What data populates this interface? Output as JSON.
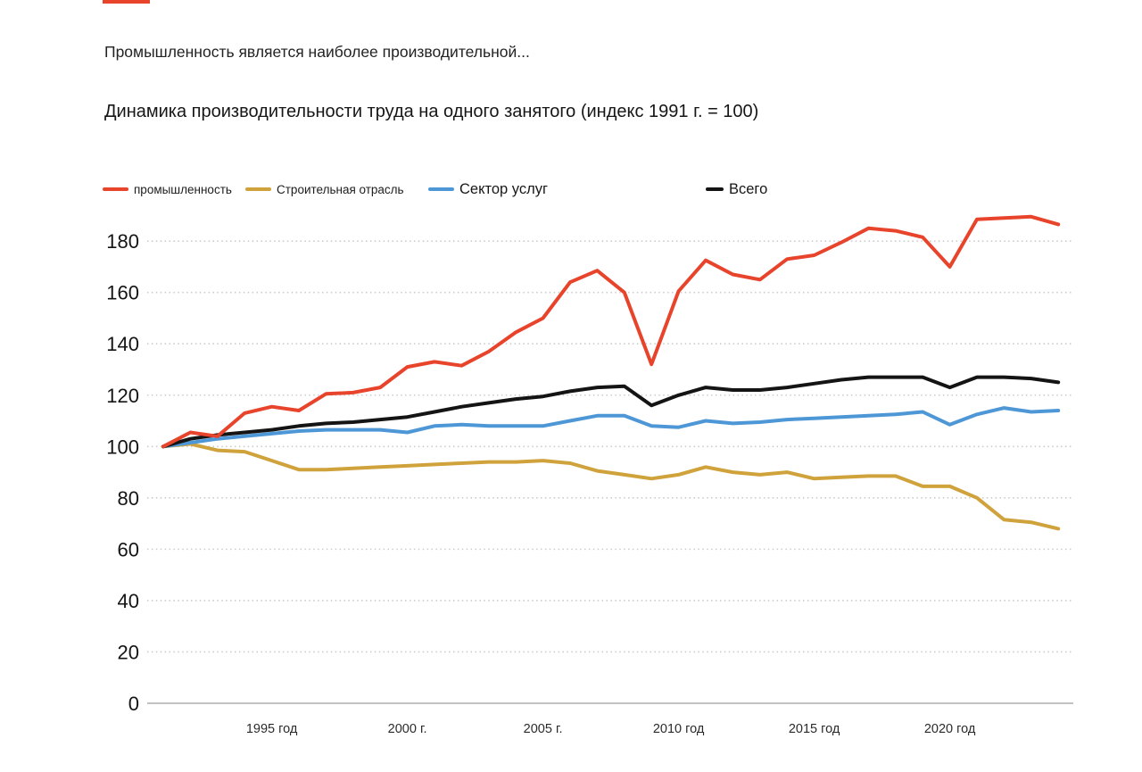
{
  "accent_color": "#E8432B",
  "kicker": "Промышленность является наиболее производительной...",
  "title": "Динамика производительности труда на одного занятого (индекс 1991 г. = 100)",
  "legend": {
    "items": [
      {
        "key": "industry",
        "label": "промышленность",
        "color": "#E8432B",
        "size": "small"
      },
      {
        "key": "construction",
        "label": "Строительная отрасль",
        "color": "#D0A23C",
        "size": "small"
      },
      {
        "key": "services",
        "label": "Сектор услуг",
        "color": "#4E97D7",
        "size": "large"
      },
      {
        "key": "total",
        "label": "Всего",
        "color": "#141414",
        "size": "large"
      }
    ]
  },
  "chart_data": {
    "type": "line",
    "title": "Динамика производительности труда на одного занятого (индекс 1991 г. = 100)",
    "xlabel": "",
    "ylabel": "",
    "grid": "horizontal-dotted",
    "legend_position": "top",
    "ylim": [
      0,
      195
    ],
    "yticks": [
      0,
      20,
      40,
      60,
      80,
      100,
      120,
      140,
      160,
      180
    ],
    "x": [
      1991,
      1992,
      1993,
      1994,
      1995,
      1996,
      1997,
      1998,
      1999,
      2000,
      2001,
      2002,
      2003,
      2004,
      2005,
      2006,
      2007,
      2008,
      2009,
      2010,
      2011,
      2012,
      2013,
      2014,
      2015,
      2016,
      2017,
      2018,
      2019,
      2020,
      2021,
      2022,
      2023,
      2024
    ],
    "x_tick_labels": [
      {
        "year": 1995,
        "label": "1995 год"
      },
      {
        "year": 2000,
        "label": "2000 г."
      },
      {
        "year": 2005,
        "label": "2005 г."
      },
      {
        "year": 2010,
        "label": "2010 год"
      },
      {
        "year": 2015,
        "label": "2015 год"
      },
      {
        "year": 2020,
        "label": "2020 год"
      }
    ],
    "series": [
      {
        "key": "construction",
        "name": "Строительная отрасль",
        "color": "#D0A23C",
        "values": [
          100,
          101,
          98.5,
          98,
          94.5,
          91,
          91,
          91.5,
          92,
          92.5,
          93,
          93.5,
          94,
          94,
          94.5,
          93.5,
          90.5,
          89,
          87.5,
          89,
          92,
          90,
          89,
          90,
          87.5,
          88,
          88.5,
          88.5,
          84.5,
          84.5,
          80,
          71.5,
          70.5,
          68
        ]
      },
      {
        "key": "services",
        "name": "Сектор услуг",
        "color": "#4E97D7",
        "values": [
          100,
          101.5,
          103,
          104,
          105,
          106,
          106.5,
          106.5,
          106.5,
          105.5,
          108,
          108.5,
          108,
          108,
          108,
          110,
          112,
          112,
          108,
          107.5,
          110,
          109,
          109.5,
          110.5,
          111,
          111.5,
          112,
          112.5,
          113.5,
          108.5,
          112.5,
          115,
          113.5,
          114
        ]
      },
      {
        "key": "total",
        "name": "Всего",
        "color": "#141414",
        "values": [
          100,
          103,
          104.5,
          105.5,
          106.5,
          108,
          109,
          109.5,
          110.5,
          111.5,
          113.5,
          115.5,
          117,
          118.5,
          119.5,
          121.5,
          123,
          123.5,
          116,
          120,
          123,
          122,
          122,
          123,
          124.5,
          126,
          127,
          127,
          127,
          123,
          127,
          127,
          126.5,
          125
        ]
      },
      {
        "key": "industry",
        "name": "промышленность",
        "color": "#E8432B",
        "values": [
          100,
          105.5,
          104,
          113,
          115.5,
          114,
          120.5,
          121,
          123,
          131,
          133,
          131.5,
          137,
          144.5,
          150,
          164,
          168.5,
          160,
          132,
          160.5,
          172.5,
          167,
          165,
          173,
          174.5,
          179.5,
          185,
          184,
          181.5,
          170,
          188.5,
          189,
          189.5,
          186.5
        ]
      }
    ]
  }
}
